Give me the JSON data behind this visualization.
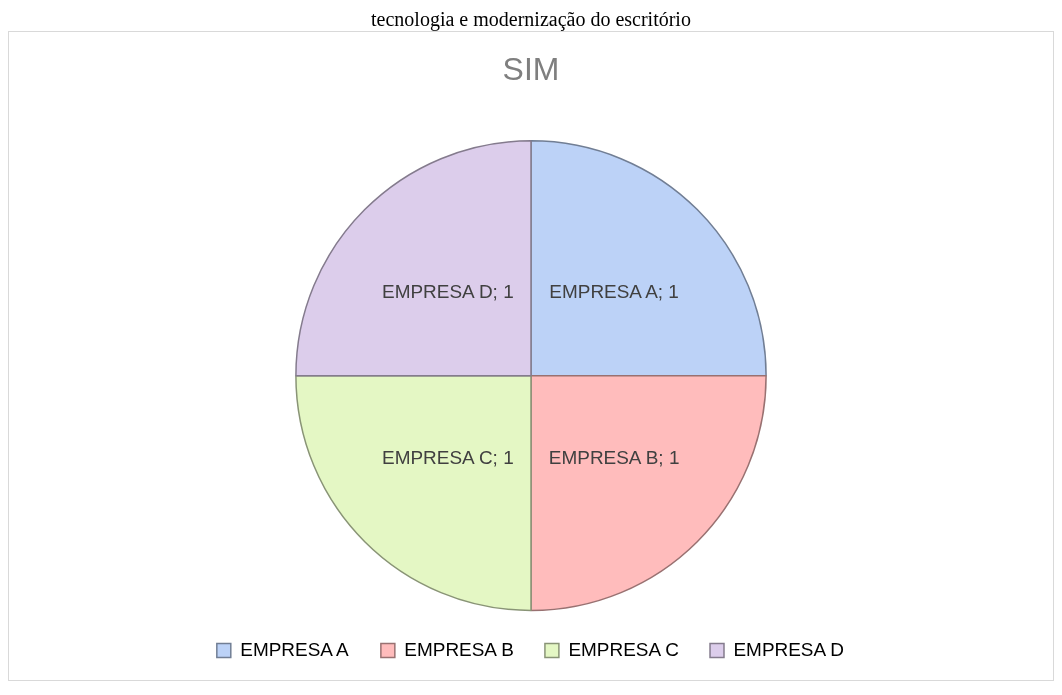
{
  "chart_data": {
    "type": "pie",
    "title": "SIM",
    "annotations": [
      "tecnologia e modernização do escritório"
    ],
    "categories": [
      "EMPRESA A",
      "EMPRESA B",
      "EMPRESA C",
      "EMPRESA D"
    ],
    "values": [
      1,
      1,
      1,
      1
    ],
    "colors": [
      "#bcd2f7",
      "#ffbcbc",
      "#e4f7c4",
      "#dccdeb"
    ],
    "value_labels": [
      "EMPRESA A; 1",
      "EMPRESA B; 1",
      "EMPRESA C; 1",
      "EMPRESA D; 1"
    ],
    "legend": "bottom"
  }
}
